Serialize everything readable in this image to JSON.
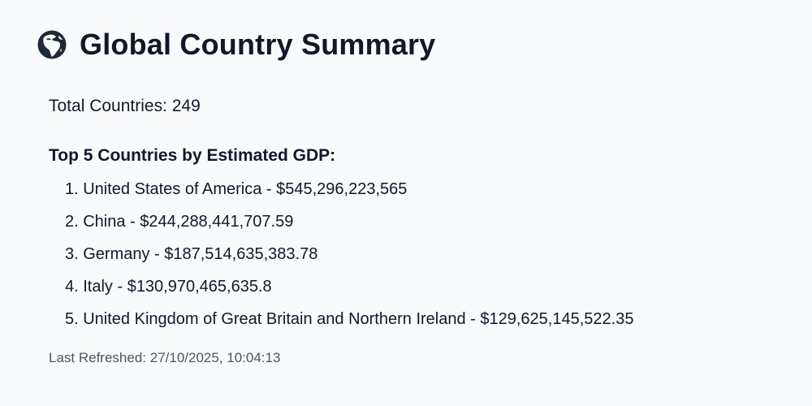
{
  "header": {
    "icon": "globe-africa-icon",
    "title": "Global Country Summary"
  },
  "summary": {
    "total_countries": "Total Countries: 249"
  },
  "top_countries": {
    "heading": "Top 5 Countries by Estimated GDP:",
    "items": [
      "1. United States of America - $545,296,223,565",
      "2. China - $244,288,441,707.59",
      "3. Germany - $187,514,635,383.78",
      "4. Italy - $130,970,465,635.8",
      "5. United Kingdom of Great Britain and Northern Ireland - $129,625,145,522.35"
    ]
  },
  "footer": {
    "last_refreshed": "Last Refreshed: 27/10/2025, 10:04:13"
  }
}
